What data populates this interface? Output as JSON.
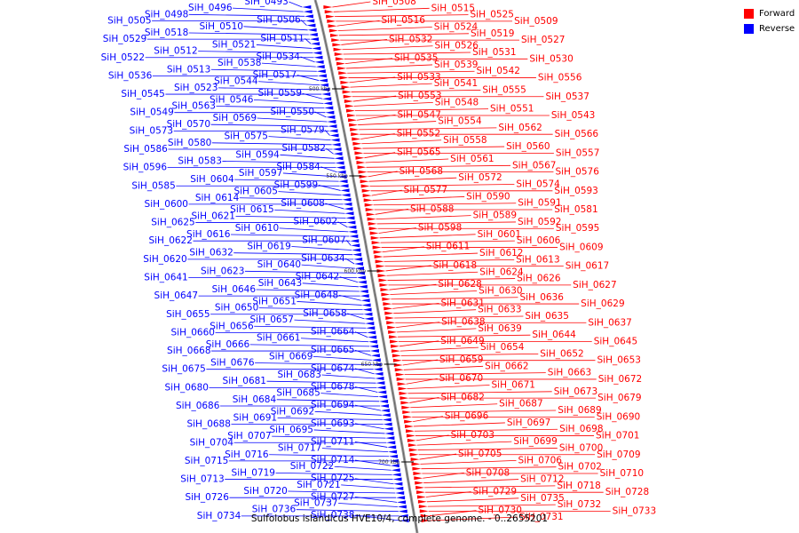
{
  "colors": {
    "forward": "#ff0000",
    "reverse": "#0000ff",
    "backbone": "#999999"
  },
  "caption": "Sulfolobus islandicus HVE10/4, complete genome. - 0..2655201",
  "legend": [
    {
      "label": "Forward",
      "color": "#ff0000"
    },
    {
      "label": "Reverse",
      "color": "#0000ff"
    }
  ],
  "ticks": [
    "500 kbp",
    "550 kbp",
    "600 kbp",
    "650 kbp",
    "700 kbp"
  ],
  "forward_genes": [
    "SiH_0508",
    "SiH_0515",
    "SiH_0525",
    "SiH_0509",
    "SiH_0516",
    "SiH_0524",
    "SiH_0519",
    "SiH_0527",
    "SiH_0532",
    "SiH_0526",
    "SiH_0531",
    "SiH_0530",
    "SiH_0535",
    "SiH_0539",
    "SiH_0542",
    "SiH_0556",
    "SiH_0533",
    "SiH_0541",
    "SiH_0555",
    "SiH_0537",
    "SiH_0553",
    "SiH_0548",
    "SiH_0551",
    "SiH_0543",
    "SiH_0547",
    "SiH_0554",
    "SiH_0562",
    "SiH_0566",
    "SiH_0552",
    "SiH_0558",
    "SiH_0560",
    "SiH_0557",
    "SiH_0565",
    "SiH_0561",
    "SiH_0567",
    "SiH_0576",
    "SiH_0568",
    "SiH_0572",
    "SiH_0574",
    "SiH_0593",
    "SiH_0577",
    "SiH_0590",
    "SiH_0591",
    "SiH_0581",
    "SiH_0588",
    "SiH_0589",
    "SiH_0592",
    "SiH_0595",
    "SiH_0598",
    "SiH_0601",
    "SiH_0606",
    "SiH_0609",
    "SiH_0611",
    "SiH_0612",
    "SiH_0613",
    "SiH_0617",
    "SiH_0618",
    "SiH_0624",
    "SiH_0626",
    "SiH_0627",
    "SiH_0628",
    "SiH_0630",
    "SiH_0636",
    "SiH_0629",
    "SiH_0631",
    "SiH_0633",
    "SiH_0635",
    "SiH_0637",
    "SiH_0638",
    "SiH_0639",
    "SiH_0644",
    "SiH_0645",
    "SiH_0649",
    "SiH_0654",
    "SiH_0652",
    "SiH_0653",
    "SiH_0659",
    "SiH_0662",
    "SiH_0663",
    "SiH_0672",
    "SiH_0670",
    "SiH_0671",
    "SiH_0673",
    "SiH_0679",
    "SiH_0682",
    "SiH_0687",
    "SiH_0689",
    "SiH_0690",
    "SiH_0696",
    "SiH_0697",
    "SiH_0698",
    "SiH_0701",
    "SiH_0703",
    "SiH_0699",
    "SiH_0700",
    "SiH_0709",
    "SiH_0705",
    "SiH_0706",
    "SiH_0702",
    "SiH_0710",
    "SiH_0708",
    "SiH_0712",
    "SiH_0718",
    "SiH_0728",
    "SiH_0729",
    "SiH_0735",
    "SiH_0732",
    "SiH_0733",
    "SiH_0730",
    "SiH_0731"
  ],
  "reverse_genes": [
    "SiH_0493",
    "SiH_0496",
    "SiH_0498",
    "SiH_0505",
    "SiH_0506",
    "SiH_0510",
    "SiH_0518",
    "SiH_0529",
    "SiH_0511",
    "SiH_0521",
    "SiH_0512",
    "SiH_0522",
    "SiH_0534",
    "SiH_0538",
    "SiH_0513",
    "SiH_0536",
    "SiH_0517",
    "SiH_0544",
    "SiH_0523",
    "SiH_0545",
    "SiH_0559",
    "SiH_0546",
    "SiH_0563",
    "SiH_0549",
    "SiH_0550",
    "SiH_0569",
    "SiH_0570",
    "SiH_0573",
    "SiH_0579",
    "SiH_0575",
    "SiH_0580",
    "SiH_0586",
    "SiH_0582",
    "SiH_0594",
    "SiH_0583",
    "SiH_0596",
    "SiH_0584",
    "SiH_0597",
    "SiH_0604",
    "SiH_0585",
    "SiH_0599",
    "SiH_0605",
    "SiH_0614",
    "SiH_0600",
    "SiH_0608",
    "SiH_0615",
    "SiH_0621",
    "SiH_0625",
    "SiH_0602",
    "SiH_0610",
    "SiH_0616",
    "SiH_0622",
    "SiH_0607",
    "SiH_0619",
    "SiH_0632",
    "SiH_0620",
    "SiH_0634",
    "SiH_0640",
    "SiH_0623",
    "SiH_0641",
    "SiH_0642",
    "SiH_0643",
    "SiH_0646",
    "SiH_0647",
    "SiH_0648",
    "SiH_0651",
    "SiH_0650",
    "SiH_0655",
    "SiH_0658",
    "SiH_0657",
    "SiH_0656",
    "SiH_0660",
    "SiH_0664",
    "SiH_0661",
    "SiH_0666",
    "SiH_0668",
    "SiH_0665",
    "SiH_0669",
    "SiH_0676",
    "SiH_0675",
    "SiH_0674",
    "SiH_0683",
    "SiH_0681",
    "SiH_0680",
    "SiH_0678",
    "SiH_0685",
    "SiH_0684",
    "SiH_0686",
    "SiH_0694",
    "SiH_0692",
    "SiH_0691",
    "SiH_0688",
    "SiH_0693",
    "SiH_0695",
    "SiH_0707",
    "SiH_0704",
    "SiH_0711",
    "SiH_0717",
    "SiH_0716",
    "SiH_0715",
    "SiH_0714",
    "SiH_0722",
    "SiH_0719",
    "SiH_0713",
    "SiH_0725",
    "SiH_0721",
    "SiH_0720",
    "SiH_0726",
    "SiH_0727",
    "SiH_0737",
    "SiH_0736",
    "SiH_0734",
    "SiH_0738"
  ]
}
